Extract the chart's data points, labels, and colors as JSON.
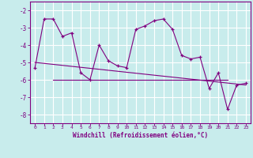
{
  "x": [
    0,
    1,
    2,
    3,
    4,
    5,
    6,
    7,
    8,
    9,
    10,
    11,
    12,
    13,
    14,
    15,
    16,
    17,
    18,
    19,
    20,
    21,
    22,
    23
  ],
  "y": [
    -5.3,
    -2.5,
    -2.5,
    -3.5,
    -3.3,
    -5.6,
    -6.0,
    -4.0,
    -4.9,
    -5.2,
    -5.3,
    -3.1,
    -2.9,
    -2.6,
    -2.5,
    -3.1,
    -4.6,
    -4.8,
    -4.7,
    -6.5,
    -5.6,
    -7.7,
    -6.3,
    -6.2
  ],
  "trend_x": [
    0,
    23
  ],
  "trend_y": [
    -5.0,
    -6.3
  ],
  "hline_y": -6.0,
  "hline_x_start": 2,
  "hline_x_end": 21,
  "line_color": "#800080",
  "bg_color": "#c8ecec",
  "grid_color": "#ffffff",
  "xlabel": "Windchill (Refroidissement éolien,°C)",
  "ylim": [
    -8.5,
    -1.5
  ],
  "xlim": [
    -0.5,
    23.5
  ],
  "yticks": [
    -8,
    -7,
    -6,
    -5,
    -4,
    -3,
    -2
  ],
  "xticks": [
    0,
    1,
    2,
    3,
    4,
    5,
    6,
    7,
    8,
    9,
    10,
    11,
    12,
    13,
    14,
    15,
    16,
    17,
    18,
    19,
    20,
    21,
    22,
    23
  ]
}
